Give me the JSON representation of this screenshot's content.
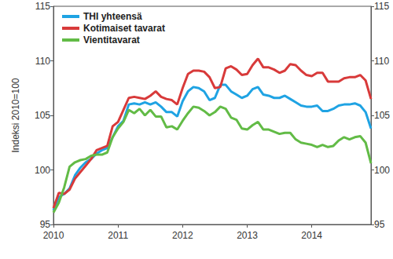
{
  "chart_data": {
    "type": "line",
    "y_label": "Indeksi 2010=100",
    "categories": [
      "2010",
      null,
      null,
      null,
      null,
      null,
      null,
      null,
      null,
      null,
      null,
      null,
      "2011",
      null,
      null,
      null,
      null,
      null,
      null,
      null,
      null,
      null,
      null,
      null,
      "2012",
      null,
      null,
      null,
      null,
      null,
      null,
      null,
      null,
      null,
      null,
      null,
      "2013",
      null,
      null,
      null,
      null,
      null,
      null,
      null,
      null,
      null,
      null,
      null,
      "2014",
      null,
      null,
      null,
      null,
      null,
      null,
      null,
      null,
      null,
      null,
      null
    ],
    "series": [
      {
        "name": "THI yhteensä",
        "color": "#1fa3e3",
        "values": [
          96.3,
          97.5,
          97.8,
          98.3,
          99.5,
          100.2,
          100.7,
          101.0,
          101.5,
          101.8,
          102.0,
          103.0,
          104.0,
          104.5,
          106.0,
          106.1,
          106.0,
          106.2,
          106.0,
          106.2,
          105.8,
          105.3,
          105.3,
          104.9,
          106.3,
          107.2,
          107.6,
          107.5,
          107.2,
          106.4,
          106.6,
          107.8,
          107.8,
          107.2,
          106.9,
          106.6,
          106.8,
          107.4,
          107.6,
          106.9,
          106.8,
          106.6,
          106.6,
          106.8,
          106.5,
          106.2,
          105.9,
          105.8,
          105.8,
          105.9,
          105.4,
          105.4,
          105.6,
          105.9,
          106.0,
          106.0,
          106.1,
          105.9,
          105.3,
          103.8
        ]
      },
      {
        "name": "Kotimaiset tavarat",
        "color": "#d83a3a",
        "values": [
          96.5,
          97.9,
          97.8,
          98.2,
          99.2,
          99.8,
          100.4,
          101.0,
          101.8,
          102.0,
          102.2,
          104.0,
          104.4,
          105.5,
          106.6,
          106.7,
          106.6,
          106.5,
          106.8,
          107.2,
          106.7,
          106.5,
          106.4,
          106.0,
          107.5,
          108.8,
          109.1,
          109.1,
          109.0,
          108.5,
          107.5,
          107.6,
          109.3,
          109.5,
          109.2,
          108.7,
          108.8,
          109.6,
          110.2,
          109.4,
          109.4,
          109.2,
          108.9,
          109.1,
          109.7,
          109.6,
          109.1,
          108.7,
          108.6,
          108.9,
          108.9,
          108.1,
          108.1,
          108.1,
          108.4,
          108.5,
          108.5,
          108.7,
          108.2,
          106.5
        ]
      },
      {
        "name": "Vientitavarat",
        "color": "#62bb46",
        "values": [
          96.1,
          97.0,
          98.4,
          100.3,
          100.7,
          100.9,
          101.0,
          101.3,
          101.4,
          101.4,
          101.6,
          103.0,
          103.8,
          104.4,
          105.5,
          105.2,
          105.6,
          105.0,
          105.5,
          104.9,
          104.9,
          103.9,
          104.0,
          103.7,
          104.5,
          105.2,
          105.8,
          105.7,
          105.4,
          105.0,
          105.3,
          105.8,
          105.6,
          104.8,
          104.6,
          103.8,
          103.7,
          104.1,
          104.4,
          103.7,
          103.7,
          103.5,
          103.3,
          103.4,
          103.4,
          102.8,
          102.5,
          102.4,
          102.3,
          102.1,
          102.3,
          102.1,
          102.2,
          102.7,
          103.0,
          102.8,
          103.0,
          103.1,
          102.5,
          100.6
        ]
      }
    ],
    "ylim": [
      95,
      115
    ],
    "yticks": [
      95,
      100,
      105,
      110,
      115
    ],
    "y2lim": [
      95,
      115
    ],
    "y2ticks": [
      95,
      100,
      105,
      110,
      115
    ],
    "grid": false,
    "legend": "top-left"
  }
}
